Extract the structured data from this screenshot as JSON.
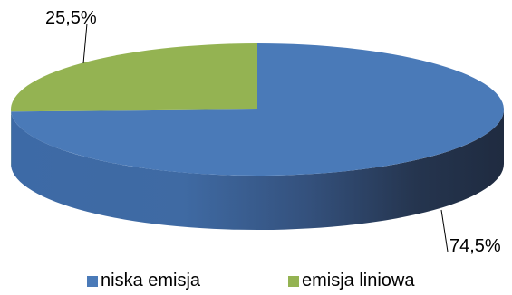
{
  "chart_data": {
    "type": "pie",
    "style": "3d",
    "title": "",
    "slices": [
      {
        "name": "niska emisja",
        "value": 74.5,
        "label": "74,5%",
        "color": "#4a7ab8"
      },
      {
        "name": "emisja liniowa",
        "value": 25.5,
        "label": "25,5%",
        "color": "#94b352"
      }
    ],
    "legend": {
      "placement": "bottom"
    }
  }
}
